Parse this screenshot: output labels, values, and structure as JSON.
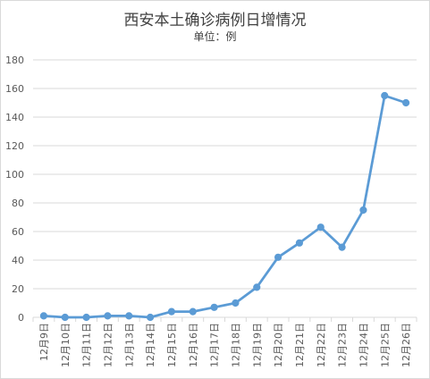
{
  "chart_data": {
    "type": "line",
    "title": "西安本土确诊病例日增情况",
    "subtitle": "单位：例",
    "xlabel": "",
    "ylabel": "",
    "categories": [
      "12月9日",
      "12月10日",
      "12月11日",
      "12月12日",
      "12月13日",
      "12月14日",
      "12月15日",
      "12月16日",
      "12月17日",
      "12月18日",
      "12月19日",
      "12月20日",
      "12月21日",
      "12月22日",
      "12月23日",
      "12月24日",
      "12月25日",
      "12月26日"
    ],
    "series": [
      {
        "values": [
          1,
          0,
          0,
          1,
          1,
          0,
          4,
          4,
          7,
          10,
          21,
          42,
          52,
          63,
          49,
          75,
          155,
          150
        ]
      }
    ],
    "ylim": [
      0,
      180
    ],
    "yticks": [
      0,
      20,
      40,
      60,
      80,
      100,
      120,
      140,
      160,
      180
    ],
    "grid": true,
    "legend": "none",
    "colors": {
      "line": "#5b9bd5",
      "grid": "#d9d9d9",
      "text": "#595959"
    }
  }
}
